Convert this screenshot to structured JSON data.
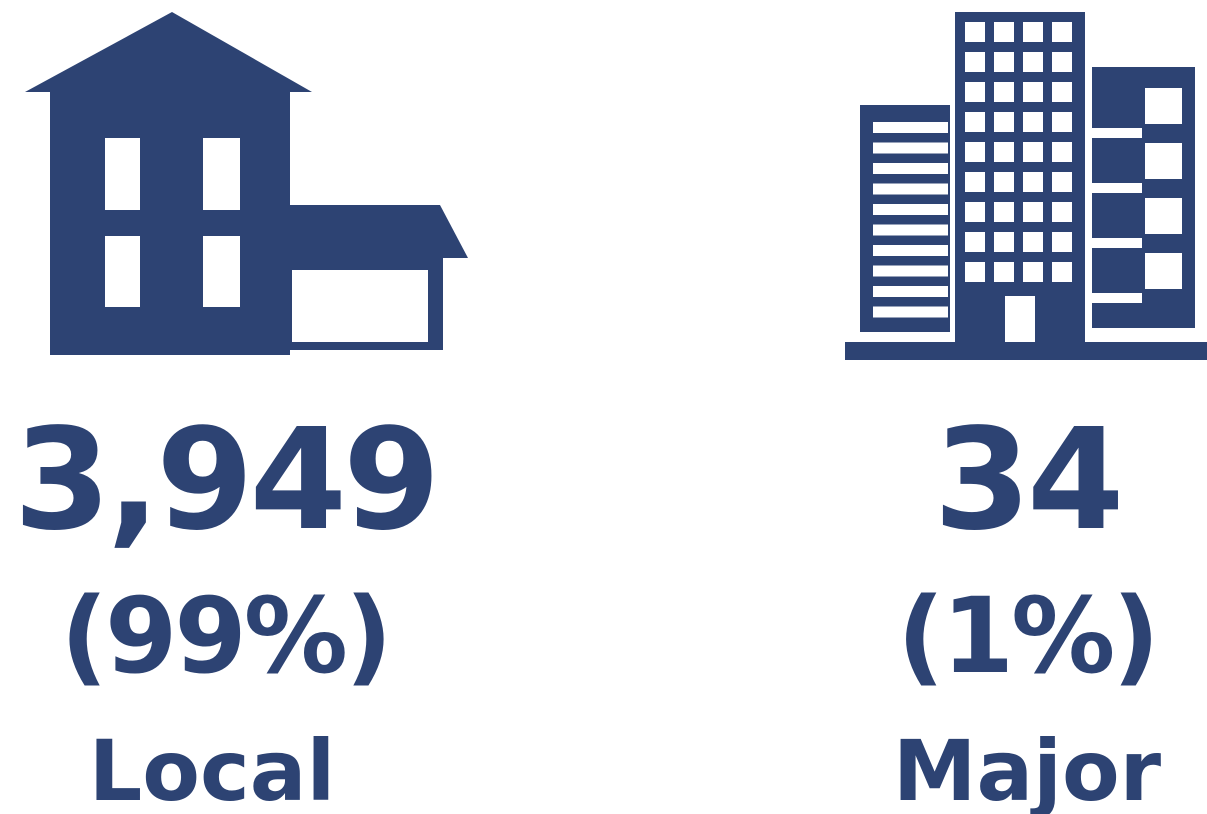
{
  "items": [
    {
      "count": "3,949",
      "share": "(99%)",
      "label": "Local"
    },
    {
      "count": "34",
      "share": "(1%)",
      "label": "Major"
    }
  ]
}
